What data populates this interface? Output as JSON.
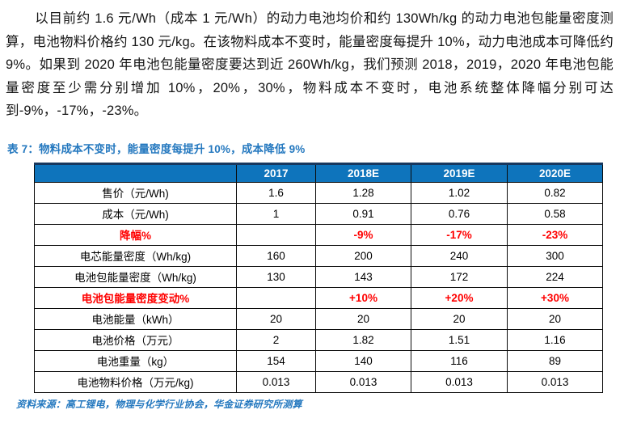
{
  "paragraph": "以目前约 1.6 元/Wh（成本 1 元/Wh）的动力电池均价和约 130Wh/kg 的动力电池包能量密度测算，电池物料价格约 130 元/kg。在该物料成本不变时，能量密度每提升 10%，动力电池成本可降低约 9%。如果到 2020 年电池包能量密度要达到近 260Wh/kg，我们预测 2018，2019，2020 年电池包能量密度至少需分别增加 10%，20%，30%，物料成本不变时，电池系统整体降幅分别可达到-9%，-17%，-23%。",
  "table": {
    "title": "表 7：物料成本不变时，能量密度每提升 10%，成本降低 9%",
    "columns": [
      "",
      "2017",
      "2018E",
      "2019E",
      "2020E"
    ],
    "rows": [
      {
        "label": "售价（元/Wh)",
        "values": [
          "1.6",
          "1.28",
          "1.02",
          "0.82"
        ],
        "highlight": false
      },
      {
        "label": "成本（元/Wh)",
        "values": [
          "1",
          "0.91",
          "0.76",
          "0.58"
        ],
        "highlight": false
      },
      {
        "label": "降幅%",
        "values": [
          "",
          "-9%",
          "-17%",
          "-23%"
        ],
        "highlight": true
      },
      {
        "label": "电芯能量密度（Wh/kg)",
        "values": [
          "160",
          "200",
          "240",
          "300"
        ],
        "highlight": false
      },
      {
        "label": "电池包能量密度（Wh/kg)",
        "values": [
          "130",
          "143",
          "172",
          "224"
        ],
        "highlight": false
      },
      {
        "label": "电池包能量密度变动%",
        "values": [
          "",
          "+10%",
          "+20%",
          "+30%"
        ],
        "highlight": true
      },
      {
        "label": "电池能量（kWh）",
        "values": [
          "20",
          "20",
          "20",
          "20"
        ],
        "highlight": false
      },
      {
        "label": "电池价格（万元）",
        "values": [
          "2",
          "1.82",
          "1.51",
          "1.16"
        ],
        "highlight": false
      },
      {
        "label": "电池重量（kg）",
        "values": [
          "154",
          "140",
          "116",
          "89"
        ],
        "highlight": false
      },
      {
        "label": "电池物料价格（万元/kg)",
        "values": [
          "0.013",
          "0.013",
          "0.013",
          "0.013"
        ],
        "highlight": false
      }
    ],
    "source": "资料来源：高工锂电，物理与化学行业协会，华金证券研究所测算"
  },
  "colors": {
    "header_bg": "#0E74BC",
    "title_blue": "#2478BF",
    "highlight_red": "#FF0000",
    "table_top_border": "#17375E"
  }
}
